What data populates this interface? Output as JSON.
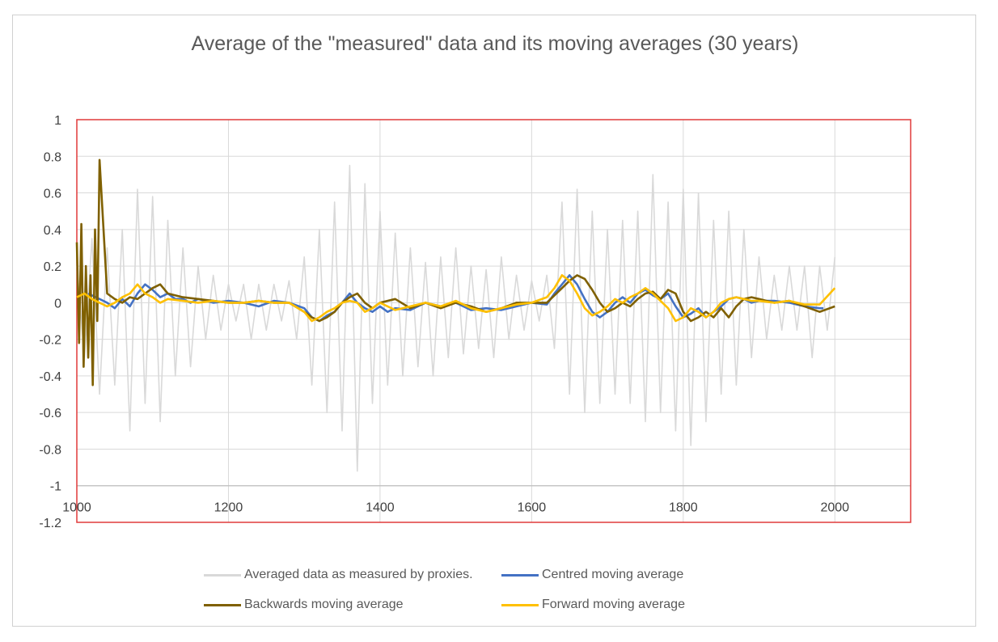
{
  "chart_data": {
    "type": "line",
    "title": "Average of the \"measured\" data and its moving averages (30 years)",
    "xlabel": "",
    "ylabel": "",
    "xlim": [
      1000,
      2100
    ],
    "ylim": [
      -1.2,
      1
    ],
    "x_ticks": [
      "1000",
      "1200",
      "1400",
      "1600",
      "1800",
      "2000"
    ],
    "x_tick_values": [
      1000,
      1200,
      1400,
      1600,
      1800,
      2000
    ],
    "y_ticks": [
      "1",
      "0.8",
      "0.6",
      "0.4",
      "0.2",
      "0",
      "-0.2",
      "-0.4",
      "-0.6",
      "-0.8",
      "-1",
      "-1.2"
    ],
    "y_tick_values": [
      1,
      0.8,
      0.6,
      0.4,
      0.2,
      0,
      -0.2,
      -0.4,
      -0.6,
      -0.8,
      -1,
      -1.2
    ],
    "grid": true,
    "legend_position": "bottom",
    "series": [
      {
        "name": "Averaged data as measured by proxies.",
        "color": "#d9d9d9",
        "x": [
          1000,
          1010,
          1020,
          1030,
          1040,
          1050,
          1060,
          1070,
          1080,
          1090,
          1100,
          1110,
          1120,
          1130,
          1140,
          1150,
          1160,
          1170,
          1180,
          1190,
          1200,
          1210,
          1220,
          1230,
          1240,
          1250,
          1260,
          1270,
          1280,
          1290,
          1300,
          1310,
          1320,
          1330,
          1340,
          1350,
          1360,
          1370,
          1380,
          1390,
          1400,
          1410,
          1420,
          1430,
          1440,
          1450,
          1460,
          1470,
          1480,
          1490,
          1500,
          1510,
          1520,
          1530,
          1540,
          1550,
          1560,
          1570,
          1580,
          1590,
          1600,
          1610,
          1620,
          1630,
          1640,
          1650,
          1660,
          1670,
          1680,
          1690,
          1700,
          1710,
          1720,
          1730,
          1740,
          1750,
          1760,
          1770,
          1780,
          1790,
          1800,
          1810,
          1820,
          1830,
          1840,
          1850,
          1860,
          1870,
          1880,
          1890,
          1900,
          1910,
          1920,
          1930,
          1940,
          1950,
          1960,
          1970,
          1980,
          1990,
          2000
        ],
        "y": [
          0.2,
          -0.3,
          0.35,
          -0.5,
          0.3,
          -0.45,
          0.4,
          -0.7,
          0.62,
          -0.55,
          0.58,
          -0.65,
          0.45,
          -0.4,
          0.3,
          -0.35,
          0.2,
          -0.2,
          0.15,
          -0.15,
          0.1,
          -0.1,
          0.1,
          -0.2,
          0.1,
          -0.15,
          0.1,
          -0.1,
          0.12,
          -0.2,
          0.25,
          -0.45,
          0.4,
          -0.6,
          0.55,
          -0.7,
          0.75,
          -0.92,
          0.65,
          -0.55,
          0.5,
          -0.45,
          0.38,
          -0.4,
          0.3,
          -0.35,
          0.22,
          -0.4,
          0.25,
          -0.3,
          0.3,
          -0.28,
          0.2,
          -0.25,
          0.18,
          -0.3,
          0.25,
          -0.2,
          0.15,
          -0.15,
          0.12,
          -0.1,
          0.15,
          -0.25,
          0.55,
          -0.5,
          0.62,
          -0.6,
          0.5,
          -0.55,
          0.4,
          -0.5,
          0.45,
          -0.55,
          0.5,
          -0.65,
          0.7,
          -0.6,
          0.55,
          -0.7,
          0.62,
          -0.78,
          0.6,
          -0.65,
          0.45,
          -0.5,
          0.5,
          -0.45,
          0.4,
          -0.3,
          0.25,
          -0.2,
          0.15,
          -0.15,
          0.2,
          -0.15,
          0.2,
          -0.3,
          0.2,
          -0.15,
          0.25
        ]
      },
      {
        "name": "Centred moving average",
        "color": "#4472c4",
        "x": [
          1015,
          1030,
          1040,
          1050,
          1060,
          1070,
          1080,
          1090,
          1100,
          1110,
          1120,
          1130,
          1140,
          1150,
          1160,
          1180,
          1200,
          1220,
          1240,
          1260,
          1280,
          1300,
          1310,
          1320,
          1330,
          1340,
          1350,
          1360,
          1370,
          1380,
          1390,
          1400,
          1410,
          1420,
          1440,
          1460,
          1480,
          1500,
          1520,
          1540,
          1560,
          1580,
          1600,
          1620,
          1630,
          1640,
          1650,
          1660,
          1670,
          1680,
          1690,
          1700,
          1710,
          1720,
          1730,
          1740,
          1750,
          1760,
          1770,
          1780,
          1790,
          1800,
          1810,
          1820,
          1830,
          1840,
          1850,
          1860,
          1870,
          1880,
          1890,
          1900,
          1920,
          1940,
          1960,
          1980,
          1985
        ],
        "y": [
          0.05,
          0.02,
          0.0,
          -0.03,
          0.02,
          -0.02,
          0.05,
          0.1,
          0.07,
          0.03,
          0.05,
          0.02,
          0.02,
          0.0,
          0.02,
          0.0,
          0.01,
          0.0,
          -0.02,
          0.01,
          0.0,
          -0.03,
          -0.08,
          -0.1,
          -0.07,
          -0.05,
          0.0,
          0.05,
          0.0,
          -0.03,
          -0.05,
          -0.02,
          -0.05,
          -0.03,
          -0.04,
          0.0,
          -0.02,
          0.0,
          -0.04,
          -0.03,
          -0.04,
          -0.02,
          0.0,
          -0.01,
          0.05,
          0.1,
          0.15,
          0.1,
          0.02,
          -0.05,
          -0.08,
          -0.05,
          0.0,
          0.03,
          0.0,
          0.05,
          0.07,
          0.04,
          0.02,
          0.05,
          -0.02,
          -0.08,
          -0.06,
          -0.03,
          -0.08,
          -0.05,
          -0.02,
          0.02,
          0.03,
          0.02,
          0.0,
          0.01,
          0.01,
          0.0,
          -0.02,
          -0.03,
          -0.03
        ]
      },
      {
        "name": "Backwards moving average",
        "color": "#7f6000",
        "x": [
          1000,
          1003,
          1006,
          1009,
          1012,
          1015,
          1018,
          1021,
          1024,
          1027,
          1030,
          1040,
          1050,
          1060,
          1070,
          1080,
          1090,
          1100,
          1110,
          1120,
          1140,
          1160,
          1180,
          1200,
          1220,
          1240,
          1260,
          1280,
          1300,
          1310,
          1320,
          1330,
          1340,
          1350,
          1360,
          1370,
          1380,
          1390,
          1400,
          1420,
          1440,
          1460,
          1480,
          1500,
          1520,
          1540,
          1560,
          1580,
          1600,
          1620,
          1640,
          1650,
          1660,
          1670,
          1680,
          1690,
          1700,
          1710,
          1720,
          1730,
          1740,
          1750,
          1760,
          1770,
          1780,
          1790,
          1800,
          1810,
          1820,
          1830,
          1840,
          1850,
          1860,
          1870,
          1880,
          1890,
          1900,
          1920,
          1940,
          1960,
          1980,
          2000
        ],
        "y": [
          0.33,
          -0.22,
          0.43,
          -0.35,
          0.2,
          -0.3,
          0.15,
          -0.45,
          0.4,
          -0.1,
          0.78,
          0.05,
          0.02,
          0.0,
          0.03,
          0.02,
          0.05,
          0.08,
          0.1,
          0.05,
          0.03,
          0.02,
          0.01,
          0.0,
          0.0,
          0.01,
          0.0,
          0.0,
          -0.05,
          -0.08,
          -0.1,
          -0.08,
          -0.05,
          0.0,
          0.03,
          0.05,
          0.0,
          -0.03,
          0.0,
          0.02,
          -0.03,
          0.0,
          -0.03,
          0.0,
          -0.02,
          -0.05,
          -0.03,
          0.0,
          0.0,
          0.0,
          0.08,
          0.12,
          0.15,
          0.13,
          0.07,
          0.0,
          -0.05,
          -0.03,
          0.0,
          -0.02,
          0.02,
          0.05,
          0.06,
          0.02,
          0.07,
          0.05,
          -0.05,
          -0.1,
          -0.08,
          -0.05,
          -0.08,
          -0.03,
          -0.08,
          -0.02,
          0.02,
          0.03,
          0.02,
          0.0,
          0.01,
          -0.02,
          -0.05,
          -0.02
        ]
      },
      {
        "name": "Forward moving average",
        "color": "#ffc000",
        "x": [
          1000,
          1010,
          1020,
          1030,
          1040,
          1050,
          1060,
          1070,
          1080,
          1090,
          1100,
          1110,
          1120,
          1140,
          1160,
          1180,
          1200,
          1220,
          1240,
          1260,
          1280,
          1300,
          1310,
          1320,
          1330,
          1340,
          1350,
          1360,
          1370,
          1380,
          1390,
          1400,
          1420,
          1440,
          1460,
          1480,
          1500,
          1520,
          1540,
          1560,
          1580,
          1600,
          1620,
          1630,
          1640,
          1650,
          1660,
          1670,
          1680,
          1690,
          1700,
          1710,
          1720,
          1730,
          1740,
          1750,
          1760,
          1770,
          1780,
          1790,
          1800,
          1810,
          1820,
          1830,
          1840,
          1850,
          1860,
          1870,
          1880,
          1890,
          1900,
          1920,
          1940,
          1960,
          1980,
          2000
        ],
        "y": [
          0.03,
          0.05,
          0.02,
          0.0,
          -0.02,
          0.0,
          0.03,
          0.05,
          0.1,
          0.05,
          0.03,
          0.0,
          0.02,
          0.01,
          0.0,
          0.01,
          0.0,
          0.0,
          0.01,
          0.0,
          0.0,
          -0.05,
          -0.1,
          -0.08,
          -0.05,
          -0.03,
          0.0,
          0.01,
          0.0,
          -0.05,
          -0.03,
          0.0,
          -0.04,
          -0.02,
          0.0,
          -0.02,
          0.01,
          -0.03,
          -0.05,
          -0.03,
          -0.01,
          0.0,
          0.03,
          0.08,
          0.15,
          0.12,
          0.05,
          -0.03,
          -0.07,
          -0.05,
          -0.02,
          0.02,
          0.0,
          0.03,
          0.05,
          0.08,
          0.05,
          0.01,
          -0.03,
          -0.1,
          -0.08,
          -0.03,
          -0.05,
          -0.08,
          -0.05,
          0.0,
          0.02,
          0.03,
          0.02,
          0.01,
          0.01,
          0.0,
          0.01,
          -0.01,
          -0.01,
          0.08
        ]
      }
    ]
  }
}
